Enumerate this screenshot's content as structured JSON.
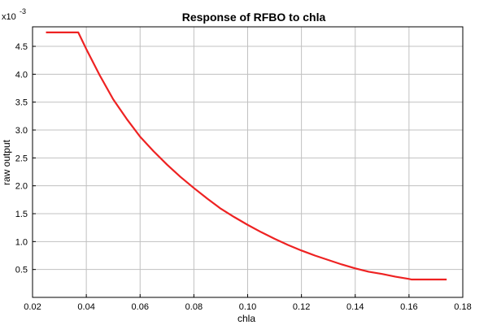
{
  "chart_data": {
    "type": "line",
    "title": "Response of RFBO to chla",
    "xlabel": "chla",
    "ylabel": "raw output",
    "y_multiplier": "x10",
    "y_exponent": "-3",
    "xlim": [
      0.02,
      0.18
    ],
    "ylim": [
      0.0,
      4.85
    ],
    "x_ticks": [
      0.02,
      0.04,
      0.06,
      0.08,
      0.1,
      0.12,
      0.14,
      0.16,
      0.18
    ],
    "x_tick_labels": [
      "0.02",
      "0.04",
      "0.06",
      "0.08",
      "0.10",
      "0.12",
      "0.14",
      "0.16",
      "0.18"
    ],
    "y_ticks": [
      0.5,
      1.0,
      1.5,
      2.0,
      2.5,
      3.0,
      3.5,
      4.0,
      4.5
    ],
    "y_tick_labels": [
      "0.5",
      "1.0",
      "1.5",
      "2.0",
      "2.5",
      "3.0",
      "3.5",
      "4.0",
      "4.5"
    ],
    "grid": true,
    "series": [
      {
        "color": "#ee2222",
        "x": [
          0.025,
          0.037,
          0.04,
          0.045,
          0.05,
          0.055,
          0.06,
          0.065,
          0.07,
          0.075,
          0.08,
          0.085,
          0.09,
          0.095,
          0.1,
          0.105,
          0.11,
          0.115,
          0.12,
          0.125,
          0.13,
          0.135,
          0.14,
          0.145,
          0.15,
          0.155,
          0.16,
          0.161,
          0.174
        ],
        "y": [
          4.75,
          4.75,
          4.45,
          3.98,
          3.55,
          3.2,
          2.88,
          2.62,
          2.38,
          2.16,
          1.96,
          1.77,
          1.59,
          1.44,
          1.3,
          1.17,
          1.05,
          0.94,
          0.84,
          0.75,
          0.67,
          0.59,
          0.52,
          0.46,
          0.42,
          0.37,
          0.33,
          0.32,
          0.32
        ]
      }
    ]
  }
}
